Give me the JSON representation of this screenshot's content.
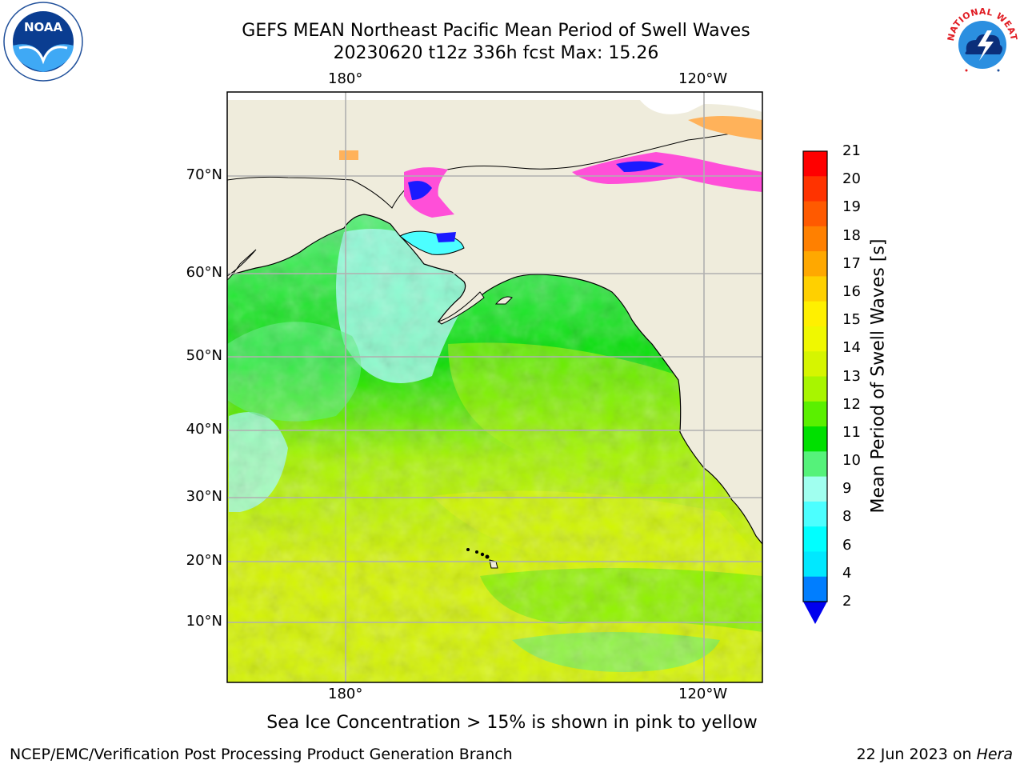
{
  "title": {
    "line1": "GEFS MEAN Northeast Pacific Mean Period of Swell Waves",
    "line2": "20230620 t12z 336h fcst   Max: 15.26"
  },
  "map": {
    "top_ticks": [
      "180°",
      "120°W"
    ],
    "bottom_ticks": [
      "180°",
      "120°W"
    ],
    "lat_ticks": [
      "70°N",
      "60°N",
      "50°N",
      "40°N",
      "30°N",
      "20°N",
      "10°N"
    ],
    "land_color": "#efecdc",
    "grid_color": "#b0b0b0"
  },
  "colorbar": {
    "label": "Mean Period of Swell Waves [s]",
    "ticks": [
      "21",
      "20",
      "19",
      "18",
      "17",
      "16",
      "15",
      "14",
      "13",
      "12",
      "11",
      "10",
      "9",
      "8",
      "6",
      "4",
      "2"
    ],
    "colors": [
      "#ff0000",
      "#ff3300",
      "#ff5a00",
      "#ff8000",
      "#ffa800",
      "#ffd000",
      "#fff000",
      "#f0f800",
      "#d6f500",
      "#a8f500",
      "#5af000",
      "#00e000",
      "#55f27a",
      "#a0ffef",
      "#4cffff",
      "#00ffff",
      "#00e8ff",
      "#007eff"
    ],
    "extend_color": "#0000ee"
  },
  "note": "Sea Ice Concentration > 15% is shown in pink to yellow",
  "footer": {
    "left": "NCEP/EMC/Verification Post Processing Product Generation Branch",
    "date": "22 Jun 2023 on ",
    "machine": "Hera"
  },
  "logos": {
    "noaa_text": "NOAA",
    "nws_text": "NATIONAL WEATHER SERVICE"
  }
}
